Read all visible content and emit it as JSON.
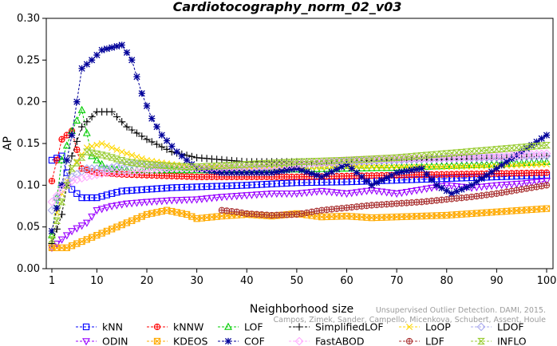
{
  "chart_data": {
    "type": "line",
    "title": "Cardiotocography_norm_02_v03",
    "xlabel": "Neighborhood size",
    "ylabel": "AP",
    "xlim": [
      1,
      100
    ],
    "ylim": [
      0,
      0.3
    ],
    "x_ticks": [
      1,
      10,
      20,
      30,
      40,
      50,
      60,
      70,
      80,
      90,
      100
    ],
    "y_ticks": [
      "0.00",
      "0.05",
      "0.10",
      "0.15",
      "0.20",
      "0.25",
      "0.30"
    ],
    "grid": false,
    "legend_position": "bottom",
    "watermark": [
      "Campos, Zimek, Sander, Campello, Micenkova, Schubert, Assent, Houle",
      "Unsupervised Outlier Detection. DAMI, 2015."
    ],
    "series": [
      {
        "name": "kNN",
        "color": "#0000ff",
        "marker": "square",
        "points": [
          [
            1,
            0.13
          ],
          [
            3,
            0.135
          ],
          [
            5,
            0.095
          ],
          [
            7,
            0.085
          ],
          [
            10,
            0.085
          ],
          [
            13,
            0.09
          ],
          [
            15,
            0.093
          ],
          [
            20,
            0.095
          ],
          [
            25,
            0.097
          ],
          [
            30,
            0.098
          ],
          [
            40,
            0.1
          ],
          [
            50,
            0.103
          ],
          [
            60,
            0.104
          ],
          [
            70,
            0.106
          ],
          [
            80,
            0.108
          ],
          [
            90,
            0.11
          ],
          [
            100,
            0.112
          ]
        ]
      },
      {
        "name": "kNNW",
        "color": "#ff0000",
        "marker": "circle-cross",
        "points": [
          [
            1,
            0.105
          ],
          [
            3,
            0.155
          ],
          [
            5,
            0.165
          ],
          [
            7,
            0.12
          ],
          [
            10,
            0.115
          ],
          [
            15,
            0.113
          ],
          [
            20,
            0.112
          ],
          [
            25,
            0.111
          ],
          [
            30,
            0.11
          ],
          [
            40,
            0.11
          ],
          [
            50,
            0.11
          ],
          [
            60,
            0.111
          ],
          [
            70,
            0.112
          ],
          [
            80,
            0.113
          ],
          [
            90,
            0.114
          ],
          [
            100,
            0.115
          ]
        ]
      },
      {
        "name": "LOF",
        "color": "#00cc00",
        "marker": "triangle",
        "points": [
          [
            1,
            0.04
          ],
          [
            3,
            0.13
          ],
          [
            5,
            0.165
          ],
          [
            7,
            0.19
          ],
          [
            9,
            0.135
          ],
          [
            12,
            0.12
          ],
          [
            15,
            0.118
          ],
          [
            20,
            0.118
          ],
          [
            25,
            0.118
          ],
          [
            30,
            0.118
          ],
          [
            40,
            0.118
          ],
          [
            50,
            0.119
          ],
          [
            60,
            0.12
          ],
          [
            70,
            0.121
          ],
          [
            80,
            0.123
          ],
          [
            90,
            0.125
          ],
          [
            100,
            0.128
          ]
        ]
      },
      {
        "name": "SimplifiedLOF",
        "color": "#000000",
        "marker": "plus",
        "points": [
          [
            1,
            0.03
          ],
          [
            3,
            0.065
          ],
          [
            5,
            0.135
          ],
          [
            7,
            0.17
          ],
          [
            10,
            0.188
          ],
          [
            13,
            0.188
          ],
          [
            16,
            0.17
          ],
          [
            20,
            0.155
          ],
          [
            25,
            0.14
          ],
          [
            30,
            0.133
          ],
          [
            40,
            0.128
          ],
          [
            50,
            0.128
          ],
          [
            60,
            0.129
          ],
          [
            70,
            0.13
          ],
          [
            80,
            0.131
          ],
          [
            90,
            0.132
          ],
          [
            100,
            0.135
          ]
        ]
      },
      {
        "name": "LoOP",
        "color": "#ffd700",
        "marker": "x",
        "points": [
          [
            1,
            0.045
          ],
          [
            3,
            0.09
          ],
          [
            5,
            0.12
          ],
          [
            8,
            0.145
          ],
          [
            11,
            0.15
          ],
          [
            15,
            0.14
          ],
          [
            20,
            0.13
          ],
          [
            25,
            0.125
          ],
          [
            30,
            0.122
          ],
          [
            40,
            0.12
          ],
          [
            50,
            0.121
          ],
          [
            60,
            0.122
          ],
          [
            70,
            0.122
          ],
          [
            80,
            0.122
          ],
          [
            90,
            0.123
          ],
          [
            100,
            0.125
          ]
        ]
      },
      {
        "name": "LDOF",
        "color": "#aaaaee",
        "marker": "diamond",
        "points": [
          [
            1,
            0.07
          ],
          [
            3,
            0.1
          ],
          [
            5,
            0.11
          ],
          [
            8,
            0.12
          ],
          [
            12,
            0.12
          ],
          [
            16,
            0.125
          ],
          [
            20,
            0.125
          ],
          [
            25,
            0.12
          ],
          [
            30,
            0.12
          ],
          [
            40,
            0.12
          ],
          [
            50,
            0.125
          ],
          [
            60,
            0.128
          ],
          [
            70,
            0.13
          ],
          [
            80,
            0.132
          ],
          [
            90,
            0.133
          ],
          [
            100,
            0.135
          ]
        ]
      },
      {
        "name": "ODIN",
        "color": "#9900ff",
        "marker": "triangle-down",
        "points": [
          [
            1,
            0.025
          ],
          [
            3,
            0.035
          ],
          [
            5,
            0.045
          ],
          [
            8,
            0.055
          ],
          [
            10,
            0.07
          ],
          [
            13,
            0.075
          ],
          [
            16,
            0.078
          ],
          [
            20,
            0.08
          ],
          [
            25,
            0.082
          ],
          [
            30,
            0.083
          ],
          [
            35,
            0.086
          ],
          [
            40,
            0.088
          ],
          [
            45,
            0.09
          ],
          [
            50,
            0.09
          ],
          [
            55,
            0.093
          ],
          [
            60,
            0.09
          ],
          [
            65,
            0.094
          ],
          [
            70,
            0.09
          ],
          [
            75,
            0.095
          ],
          [
            80,
            0.1
          ],
          [
            85,
            0.097
          ],
          [
            90,
            0.1
          ],
          [
            95,
            0.102
          ],
          [
            100,
            0.105
          ]
        ]
      },
      {
        "name": "KDEOS",
        "color": "#ffaa00",
        "marker": "square-x",
        "points": [
          [
            1,
            0.025
          ],
          [
            4,
            0.025
          ],
          [
            8,
            0.035
          ],
          [
            12,
            0.045
          ],
          [
            16,
            0.055
          ],
          [
            20,
            0.065
          ],
          [
            24,
            0.07
          ],
          [
            28,
            0.065
          ],
          [
            30,
            0.06
          ],
          [
            35,
            0.063
          ],
          [
            40,
            0.065
          ],
          [
            45,
            0.063
          ],
          [
            50,
            0.066
          ],
          [
            55,
            0.062
          ],
          [
            60,
            0.063
          ],
          [
            65,
            0.061
          ],
          [
            70,
            0.062
          ],
          [
            75,
            0.063
          ],
          [
            80,
            0.064
          ],
          [
            85,
            0.066
          ],
          [
            90,
            0.068
          ],
          [
            95,
            0.07
          ],
          [
            100,
            0.072
          ]
        ]
      },
      {
        "name": "COF",
        "color": "#000099",
        "marker": "asterisk",
        "points": [
          [
            1,
            0.045
          ],
          [
            3,
            0.1
          ],
          [
            5,
            0.16
          ],
          [
            7,
            0.24
          ],
          [
            9,
            0.25
          ],
          [
            11,
            0.262
          ],
          [
            13,
            0.265
          ],
          [
            15,
            0.268
          ],
          [
            17,
            0.25
          ],
          [
            19,
            0.21
          ],
          [
            21,
            0.18
          ],
          [
            23,
            0.16
          ],
          [
            26,
            0.14
          ],
          [
            30,
            0.12
          ],
          [
            35,
            0.115
          ],
          [
            40,
            0.115
          ],
          [
            45,
            0.115
          ],
          [
            50,
            0.12
          ],
          [
            55,
            0.11
          ],
          [
            60,
            0.125
          ],
          [
            65,
            0.1
          ],
          [
            70,
            0.115
          ],
          [
            75,
            0.12
          ],
          [
            78,
            0.1
          ],
          [
            81,
            0.09
          ],
          [
            85,
            0.1
          ],
          [
            90,
            0.12
          ],
          [
            95,
            0.14
          ],
          [
            100,
            0.16
          ]
        ]
      },
      {
        "name": "FastABOD",
        "color": "#ffaaff",
        "marker": "diamond",
        "points": [
          [
            1,
            0.08
          ],
          [
            3,
            0.095
          ],
          [
            5,
            0.105
          ],
          [
            8,
            0.11
          ],
          [
            12,
            0.115
          ],
          [
            16,
            0.115
          ],
          [
            20,
            0.118
          ],
          [
            25,
            0.12
          ],
          [
            30,
            0.12
          ],
          [
            40,
            0.122
          ],
          [
            50,
            0.125
          ],
          [
            60,
            0.13
          ],
          [
            70,
            0.132
          ],
          [
            80,
            0.133
          ],
          [
            90,
            0.135
          ],
          [
            100,
            0.138
          ]
        ]
      },
      {
        "name": "LDF",
        "color": "#aa3333",
        "marker": "circle-plus",
        "points": [
          [
            35,
            0.07
          ],
          [
            38,
            0.068
          ],
          [
            40,
            0.066
          ],
          [
            45,
            0.064
          ],
          [
            50,
            0.065
          ],
          [
            55,
            0.07
          ],
          [
            60,
            0.073
          ],
          [
            65,
            0.076
          ],
          [
            70,
            0.078
          ],
          [
            75,
            0.08
          ],
          [
            80,
            0.083
          ],
          [
            85,
            0.086
          ],
          [
            90,
            0.09
          ],
          [
            95,
            0.095
          ],
          [
            100,
            0.1
          ]
        ]
      },
      {
        "name": "INFLO",
        "color": "#99cc33",
        "marker": "hourglass",
        "points": [
          [
            1,
            0.035
          ],
          [
            3,
            0.08
          ],
          [
            5,
            0.12
          ],
          [
            8,
            0.14
          ],
          [
            12,
            0.135
          ],
          [
            16,
            0.128
          ],
          [
            20,
            0.125
          ],
          [
            25,
            0.123
          ],
          [
            30,
            0.122
          ],
          [
            40,
            0.125
          ],
          [
            50,
            0.128
          ],
          [
            60,
            0.13
          ],
          [
            70,
            0.133
          ],
          [
            80,
            0.138
          ],
          [
            90,
            0.143
          ],
          [
            100,
            0.148
          ]
        ]
      }
    ]
  }
}
